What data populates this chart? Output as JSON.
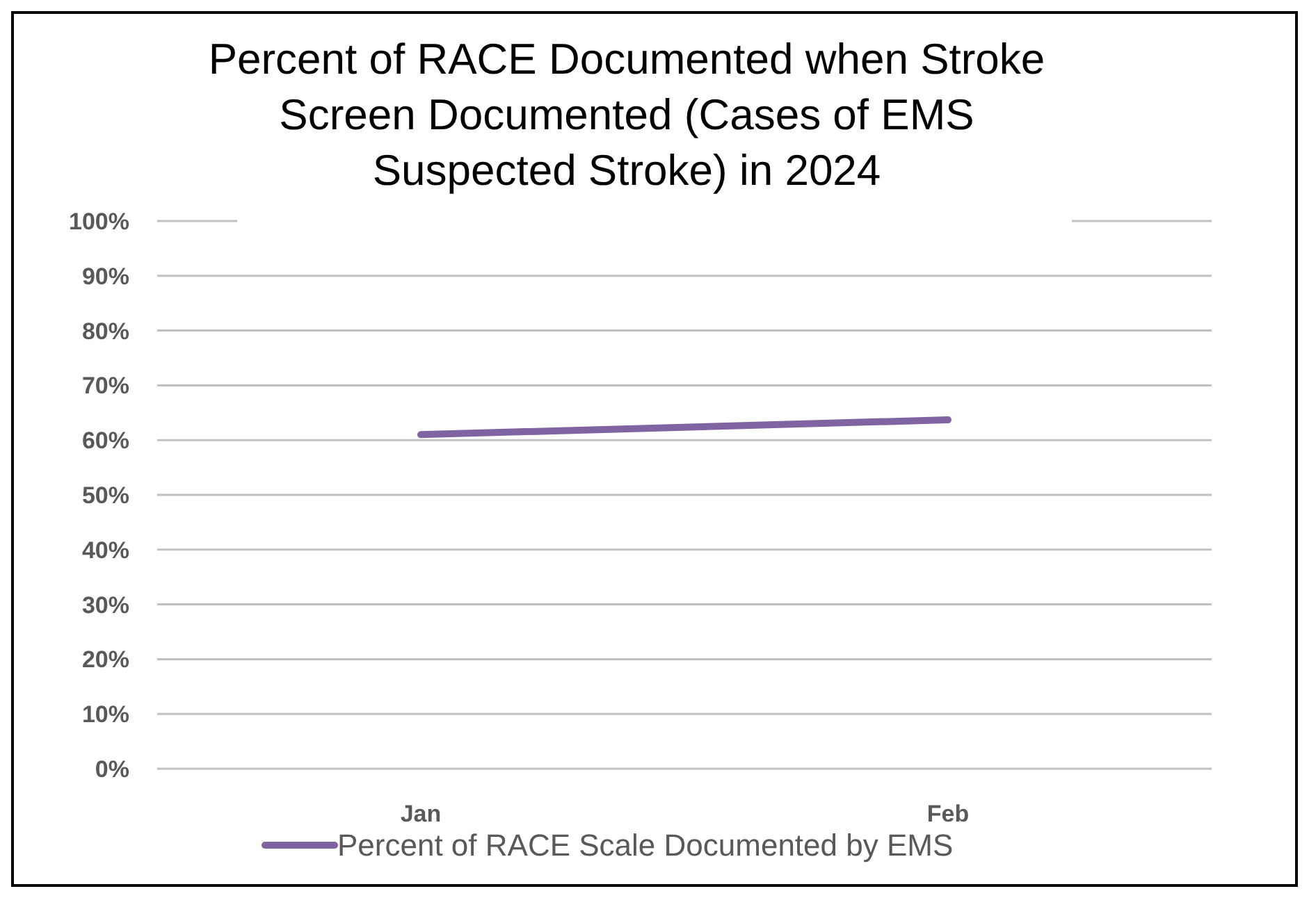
{
  "chart_data": {
    "type": "line",
    "title": "Percent of RACE Documented when Stroke Screen Documented (Cases of EMS Suspected Stroke) in 2024",
    "categories": [
      "Jan",
      "Feb"
    ],
    "series": [
      {
        "name": "Percent of RACE Scale Documented by EMS",
        "color": "#8064a2",
        "values": [
          61,
          63.7
        ]
      }
    ],
    "ylim": [
      0,
      100
    ],
    "yticks": [
      {
        "value": 0,
        "label": "0%"
      },
      {
        "value": 10,
        "label": "10%"
      },
      {
        "value": 20,
        "label": "20%"
      },
      {
        "value": 30,
        "label": "30%"
      },
      {
        "value": 40,
        "label": "40%"
      },
      {
        "value": 50,
        "label": "50%"
      },
      {
        "value": 60,
        "label": "60%"
      },
      {
        "value": 70,
        "label": "70%"
      },
      {
        "value": 80,
        "label": "80%"
      },
      {
        "value": 90,
        "label": "90%"
      },
      {
        "value": 100,
        "label": "100%"
      }
    ],
    "grid": "y",
    "legend": "bottom",
    "marker": "none",
    "line_style": "solid"
  }
}
